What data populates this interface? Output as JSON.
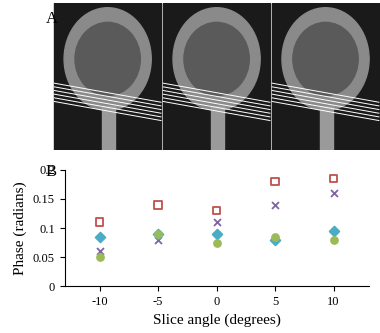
{
  "panel_a": {
    "label": "A"
  },
  "chart_data": {
    "type": "scatter",
    "label": "B",
    "x_label": "Slice angle (degrees)",
    "y_label": "Phase (radians)",
    "x": [
      -10,
      -5,
      0,
      5,
      10
    ],
    "series": [
      {
        "color": "#c0504d",
        "marker": "s",
        "values": [
          0.11,
          0.14,
          0.13,
          0.18,
          0.185
        ]
      },
      {
        "color": "#8064a2",
        "marker": "x",
        "values": [
          0.06,
          0.08,
          0.11,
          0.14,
          0.16
        ]
      },
      {
        "color": "#4bacc6",
        "marker": "D",
        "values": [
          0.085,
          0.09,
          0.09,
          0.08,
          0.095
        ]
      },
      {
        "color": "#9bbb59",
        "marker": "o",
        "values": [
          0.05,
          0.09,
          0.075,
          0.085,
          0.08
        ]
      }
    ],
    "xlim": [
      -13,
      13
    ],
    "xticks": [
      -10,
      -5,
      0,
      5,
      10
    ],
    "ylim": [
      0,
      0.2
    ],
    "yticks": [
      0,
      0.05,
      0.1,
      0.15,
      0.2
    ],
    "grid": false
  }
}
